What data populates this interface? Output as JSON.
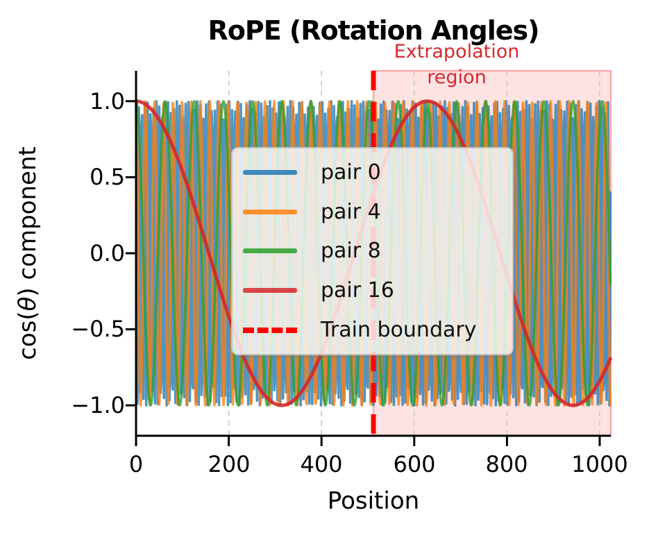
{
  "title": "RoPE (Rotation Angles)",
  "axes": {
    "xlabel": "Position",
    "ylabel_prefix": "cos(",
    "ylabel_theta": "θ",
    "ylabel_suffix": ") component",
    "x_ticks": [
      "0",
      "200",
      "400",
      "600",
      "800",
      "1000"
    ],
    "y_ticks": [
      "1.0",
      "0.5",
      "0.0",
      "−0.5",
      "−1.0"
    ]
  },
  "legend": {
    "entries": [
      {
        "label": "pair 0",
        "color": "#1f77b4",
        "style": "solid"
      },
      {
        "label": "pair 4",
        "color": "#ff7f0e",
        "style": "solid"
      },
      {
        "label": "pair 8",
        "color": "#2ca02c",
        "style": "solid"
      },
      {
        "label": "pair 16",
        "color": "#d62728",
        "style": "solid"
      },
      {
        "label": "Train boundary",
        "color": "#ff0000",
        "style": "dashed"
      }
    ]
  },
  "chart_data": {
    "type": "line",
    "title": "RoPE (Rotation Angles)",
    "xlabel": "Position",
    "ylabel": "cos(θ) component",
    "xlim": [
      0,
      1024
    ],
    "ylim": [
      -1.2,
      1.2
    ],
    "x_tick_values": [
      0,
      200,
      400,
      600,
      800,
      1000
    ],
    "y_tick_values": [
      1.0,
      0.5,
      0.0,
      -0.5,
      -1.0
    ],
    "grid": {
      "axis": "x",
      "style": "dashed",
      "color": "#cccccc"
    },
    "positions": {
      "start": 0,
      "end": 1023,
      "step": 1
    },
    "series": [
      {
        "name": "pair 0",
        "color": "#1f77b4",
        "frequency_rad_per_pos": 1.0,
        "formula": "y = cos(1.0 · position)"
      },
      {
        "name": "pair 4",
        "color": "#ff7f0e",
        "frequency_rad_per_pos": 0.3162,
        "formula": "y = cos(0.3162 · position)"
      },
      {
        "name": "pair 8",
        "color": "#2ca02c",
        "frequency_rad_per_pos": 0.1,
        "formula": "y = cos(0.1 · position)"
      },
      {
        "name": "pair 16",
        "color": "#d62728",
        "frequency_rad_per_pos": 0.01,
        "formula": "y = cos(0.01 · position)"
      }
    ],
    "train_boundary": 512,
    "boundary_color": "#ff0000",
    "extrapolation_region": {
      "start": 512,
      "end": 1024,
      "label": "Extrapolation\nregion",
      "label_color": "#d62a2e",
      "fill_color": "rgba(255,40,40,0.13)",
      "edge_color": "rgba(255,110,110,0.55)"
    },
    "legend_position": "center-left inside axes"
  }
}
